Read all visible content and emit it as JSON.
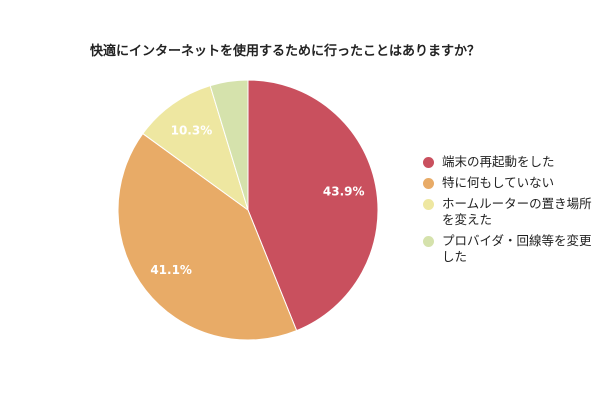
{
  "chart_data": {
    "type": "pie",
    "title": "快適にインターネットを使用するために行ったことはありますか？",
    "categories": [
      "端末の再起動をした",
      "特に何もしていない",
      "ホームルーターの置き場所を変えた",
      "プロバイダ・回線等を変更した"
    ],
    "values": [
      43.9,
      41.1,
      10.3,
      4.7
    ],
    "data_labels": [
      "43.9%",
      "41.1%",
      "10.3%",
      null
    ],
    "colors": [
      "#C9505E",
      "#E8AB67",
      "#EEE7A1",
      "#D5E2AC"
    ],
    "legend": "right"
  }
}
